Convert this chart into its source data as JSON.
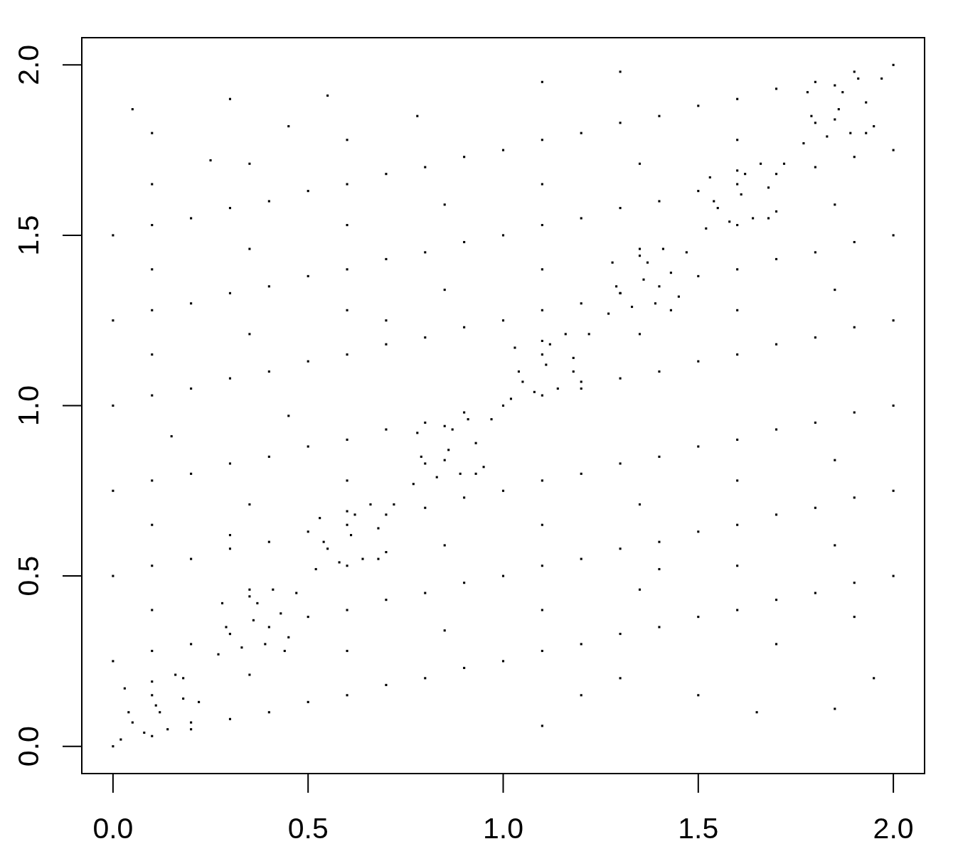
{
  "chart_data": {
    "type": "scatter",
    "color": "#000000",
    "marker": "square",
    "xlim": [
      -0.08,
      2.08
    ],
    "ylim": [
      -0.08,
      2.08
    ],
    "xticks": [
      {
        "value": 0,
        "label": "0.0"
      },
      {
        "value": 0.5,
        "label": "0.5"
      },
      {
        "value": 1,
        "label": "1.0"
      },
      {
        "value": 1.5,
        "label": "1.5"
      },
      {
        "value": 2,
        "label": "2.0"
      }
    ],
    "yticks": [
      {
        "value": 0,
        "label": "0.0"
      },
      {
        "value": 0.5,
        "label": "0.5"
      },
      {
        "value": 1,
        "label": "1.0"
      },
      {
        "value": 1.5,
        "label": "1.5"
      },
      {
        "value": 2,
        "label": "2.0"
      }
    ],
    "x": [
      0,
      0.2,
      0.4,
      0.6,
      0.8,
      1,
      0,
      0.2,
      0.4,
      0.6,
      0.8,
      1,
      0,
      0.2,
      0.4,
      0.6,
      0.8,
      1,
      0,
      0.2,
      0.4,
      0.6,
      0.8,
      1,
      0,
      0.2,
      0.4,
      0.6,
      0.8,
      1,
      0,
      0.2,
      0.4,
      0.6,
      0.8,
      1,
      0,
      0.2,
      0.4,
      0.6,
      0.8,
      1,
      1.2,
      1.4,
      1.6,
      1.8,
      2,
      1.2,
      1.4,
      1.6,
      1.8,
      2,
      1.2,
      1.4,
      1.6,
      1.8,
      2,
      1.2,
      1.4,
      1.6,
      1.8,
      2,
      1.2,
      1.4,
      1.6,
      1.8,
      2,
      1.2,
      1.4,
      1.6,
      1.8,
      2,
      1.2,
      1.4,
      1.6,
      1.8,
      2,
      0.1,
      0.35,
      0.6,
      0.85,
      0.1,
      0.35,
      0.6,
      0.85,
      0.1,
      0.35,
      0.6,
      0.85,
      0.1,
      0.35,
      0.6,
      0.85,
      0.1,
      0.35,
      0.6,
      0.85,
      0.1,
      0.35,
      0.6,
      1.1,
      1.35,
      1.6,
      1.85,
      1.1,
      1.35,
      1.6,
      1.85,
      1.1,
      1.35,
      1.6,
      1.85,
      1.1,
      1.35,
      1.6,
      1.85,
      1.1,
      1.35,
      1.6,
      1.85,
      0.05,
      0.12,
      0.18,
      0.22,
      0.3,
      0.37,
      0.44,
      0.47,
      0.55,
      0.62,
      0.68,
      0.72,
      0.8,
      0.87,
      0.93,
      0.97,
      1.05,
      1.12,
      1.18,
      1.22,
      1.3,
      1.37,
      1.43,
      1.47,
      1.55,
      1.62,
      1.68,
      1.72,
      1.8,
      1.87,
      1.93,
      1.97,
      0.05,
      0.3,
      0.55,
      0.78,
      1.1,
      1.3,
      0.1,
      0.45,
      1.5,
      1.65,
      1.85,
      1.95,
      1.3,
      1.2,
      1.1,
      0.15,
      0.45,
      1.7,
      1.9,
      1.4,
      0.3,
      0.7,
      0.25,
      0.1,
      0.3,
      0.5,
      0.7,
      0.9,
      0.1,
      0.3,
      0.5,
      0.7,
      0.9,
      0.1,
      0.3,
      0.5,
      0.7,
      0.9,
      0.1,
      0.3,
      0.5,
      0.7,
      0.9,
      0.1,
      0.3,
      0.5,
      0.7,
      0.9,
      0.1,
      0.3,
      0.5,
      0.7,
      0.9,
      0.1,
      0.3,
      0.5,
      0.7,
      0.9,
      1.1,
      1.3,
      1.5,
      1.7,
      1.9,
      1.1,
      1.3,
      1.5,
      1.7,
      1.9,
      1.1,
      1.3,
      1.5,
      1.7,
      1.9,
      1.1,
      1.3,
      1.5,
      1.7,
      1.9,
      1.1,
      1.3,
      1.5,
      1.7,
      1.9,
      1.1,
      1.3,
      1.5,
      1.7,
      1.9,
      1.1,
      1.3,
      1.5,
      1.7,
      1.9,
      0.02,
      0.08,
      0.14,
      0.2,
      0.04,
      0.11,
      0.18,
      0.03,
      0.1,
      0.16,
      0.27,
      0.33,
      0.39,
      0.45,
      0.29,
      0.36,
      0.43,
      0.28,
      0.35,
      0.41,
      0.52,
      0.58,
      0.64,
      0.7,
      0.54,
      0.61,
      0.68,
      0.53,
      0.6,
      0.66,
      0.77,
      0.83,
      0.89,
      0.95,
      0.79,
      0.86,
      0.93,
      0.78,
      0.85,
      0.91,
      1.02,
      1.08,
      1.14,
      1.2,
      1.04,
      1.11,
      1.18,
      1.03,
      1.1,
      1.16,
      1.27,
      1.33,
      1.39,
      1.45,
      1.29,
      1.36,
      1.43,
      1.28,
      1.35,
      1.41,
      1.52,
      1.58,
      1.64,
      1.7,
      1.54,
      1.61,
      1.68,
      1.53,
      1.6,
      1.66,
      1.77,
      1.83,
      1.89,
      1.95,
      1.79,
      1.86,
      1.93,
      1.78,
      1.85,
      1.91
    ],
    "values": [
      0,
      0.05,
      0.1,
      0.15,
      0.2,
      0.25,
      0.25,
      0.3,
      0.35,
      0.4,
      0.45,
      0.5,
      0.5,
      0.55,
      0.6,
      0.65,
      0.7,
      0.75,
      0.75,
      0.8,
      0.85,
      0.9,
      0.95,
      1,
      1,
      1.05,
      1.1,
      1.15,
      1.2,
      1.25,
      1.25,
      1.3,
      1.35,
      1.4,
      1.45,
      1.5,
      1.5,
      1.55,
      1.6,
      1.65,
      1.7,
      1.75,
      0.3,
      0.35,
      0.4,
      0.45,
      0.5,
      0.55,
      0.6,
      0.65,
      0.7,
      0.75,
      0.8,
      0.85,
      0.9,
      0.95,
      1,
      1.05,
      1.1,
      1.15,
      1.2,
      1.25,
      1.3,
      1.35,
      1.4,
      1.45,
      1.5,
      1.55,
      1.6,
      1.65,
      1.7,
      1.75,
      1.8,
      1.85,
      1.9,
      1.95,
      2,
      0.15,
      0.21,
      0.28,
      0.34,
      0.4,
      0.46,
      0.53,
      0.59,
      0.65,
      0.71,
      0.78,
      0.84,
      1.15,
      1.21,
      1.28,
      1.34,
      1.4,
      1.46,
      1.53,
      1.59,
      1.65,
      1.71,
      1.78,
      0.4,
      0.46,
      0.53,
      0.59,
      0.65,
      0.71,
      0.78,
      0.84,
      1.15,
      1.21,
      1.28,
      1.34,
      1.4,
      1.46,
      1.53,
      1.59,
      1.65,
      1.71,
      1.78,
      1.84,
      0.07,
      0.1,
      0.2,
      0.13,
      0.33,
      0.42,
      0.28,
      0.45,
      0.58,
      0.68,
      0.55,
      0.71,
      0.83,
      0.93,
      0.8,
      0.96,
      1.07,
      1.18,
      1.1,
      1.21,
      1.33,
      1.42,
      1.28,
      1.45,
      1.58,
      1.68,
      1.55,
      1.71,
      1.83,
      1.92,
      1.8,
      1.96,
      1.87,
      1.9,
      1.91,
      1.85,
      1.95,
      1.98,
      1.8,
      1.82,
      0.15,
      0.1,
      0.11,
      0.2,
      0.2,
      0.15,
      0.06,
      0.91,
      0.97,
      0.3,
      0.38,
      0.52,
      0.62,
      1.25,
      1.72,
      0.03,
      0.08,
      0.13,
      0.18,
      0.23,
      0.28,
      0.33,
      0.38,
      0.43,
      0.48,
      0.53,
      0.58,
      0.63,
      0.68,
      0.73,
      0.78,
      0.83,
      0.88,
      0.93,
      0.98,
      1.03,
      1.08,
      1.13,
      1.18,
      1.23,
      1.28,
      1.33,
      1.38,
      1.43,
      1.48,
      1.53,
      1.58,
      1.63,
      1.68,
      1.73,
      0.28,
      0.33,
      0.38,
      0.43,
      0.48,
      0.53,
      0.58,
      0.63,
      0.68,
      0.73,
      0.78,
      0.83,
      0.88,
      0.93,
      0.98,
      1.03,
      1.08,
      1.13,
      1.18,
      1.23,
      1.28,
      1.33,
      1.38,
      1.43,
      1.48,
      1.53,
      1.58,
      1.63,
      1.68,
      1.73,
      1.78,
      1.83,
      1.88,
      1.93,
      1.98,
      0.02,
      0.04,
      0.05,
      0.07,
      0.1,
      0.12,
      0.14,
      0.17,
      0.19,
      0.21,
      0.27,
      0.29,
      0.3,
      0.32,
      0.35,
      0.37,
      0.39,
      0.42,
      0.44,
      0.46,
      0.52,
      0.54,
      0.55,
      0.57,
      0.6,
      0.62,
      0.64,
      0.67,
      0.69,
      0.71,
      0.77,
      0.79,
      0.8,
      0.82,
      0.85,
      0.87,
      0.89,
      0.92,
      0.94,
      0.96,
      1.02,
      1.04,
      1.05,
      1.07,
      1.1,
      1.12,
      1.14,
      1.17,
      1.19,
      1.21,
      1.27,
      1.29,
      1.3,
      1.32,
      1.35,
      1.37,
      1.39,
      1.42,
      1.44,
      1.46,
      1.52,
      1.54,
      1.55,
      1.57,
      1.6,
      1.62,
      1.64,
      1.67,
      1.69,
      1.71,
      1.77,
      1.79,
      1.8,
      1.82,
      1.85,
      1.87,
      1.89,
      1.92,
      1.94,
      1.96
    ]
  }
}
